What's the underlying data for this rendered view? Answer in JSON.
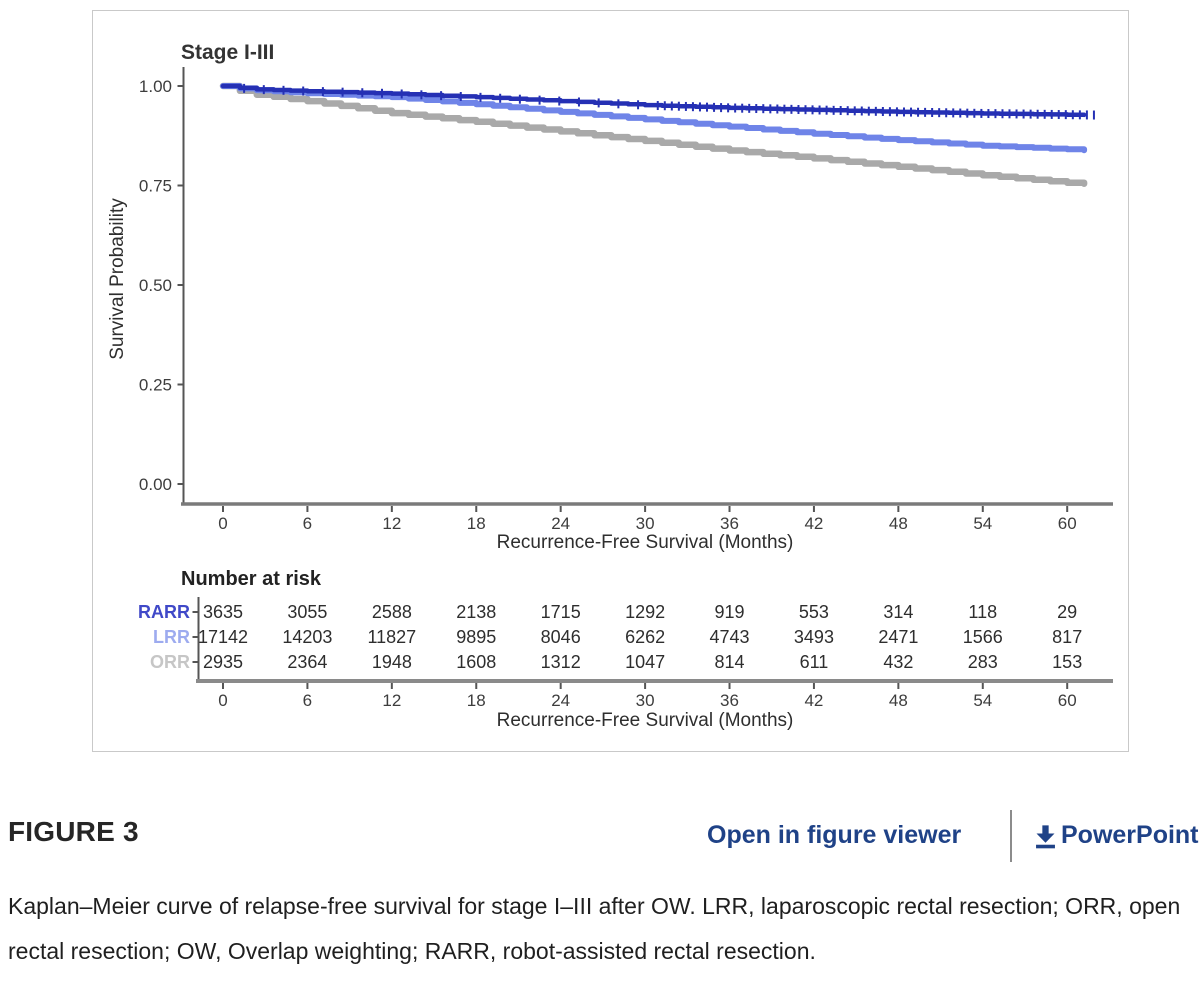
{
  "chart_data": {
    "type": "line",
    "subtype": "kaplan-meier",
    "title": "Stage I-III",
    "xlabel": "Recurrence-Free Survival (Months)",
    "ylabel": "Survival Probability",
    "xlim": [
      0,
      62
    ],
    "xticks": [
      0,
      6,
      12,
      18,
      24,
      30,
      36,
      42,
      48,
      54,
      60
    ],
    "ylim": [
      0,
      1
    ],
    "yticks": [
      0,
      0.25,
      0.5,
      0.75,
      1
    ],
    "ytick_labels": [
      "0.00",
      "0.25",
      "0.50",
      "0.75",
      "1.00"
    ],
    "grid": false,
    "series": [
      {
        "name": "RARR",
        "color": "#2530b4",
        "line_width": 4.5,
        "censor_marks": true,
        "points": [
          [
            0,
            1.0
          ],
          [
            2,
            0.992
          ],
          [
            6,
            0.987
          ],
          [
            12,
            0.981
          ],
          [
            18,
            0.972
          ],
          [
            24,
            0.962
          ],
          [
            30,
            0.952
          ],
          [
            36,
            0.945
          ],
          [
            42,
            0.94
          ],
          [
            48,
            0.935
          ],
          [
            54,
            0.931
          ],
          [
            60,
            0.928
          ],
          [
            62,
            0.927
          ]
        ]
      },
      {
        "name": "LRR",
        "color": "#6f84e8",
        "line_width": 6,
        "censor_marks": false,
        "points": [
          [
            0,
            1.0
          ],
          [
            2,
            0.99
          ],
          [
            6,
            0.982
          ],
          [
            12,
            0.972
          ],
          [
            18,
            0.954
          ],
          [
            24,
            0.935
          ],
          [
            30,
            0.916
          ],
          [
            36,
            0.898
          ],
          [
            42,
            0.88
          ],
          [
            48,
            0.864
          ],
          [
            54,
            0.85
          ],
          [
            60,
            0.841
          ],
          [
            62,
            0.837
          ]
        ]
      },
      {
        "name": "ORR",
        "color": "#a9a9a9",
        "line_width": 6.5,
        "censor_marks": false,
        "points": [
          [
            0,
            1.0
          ],
          [
            2,
            0.98
          ],
          [
            6,
            0.962
          ],
          [
            12,
            0.932
          ],
          [
            18,
            0.91
          ],
          [
            24,
            0.886
          ],
          [
            30,
            0.862
          ],
          [
            36,
            0.838
          ],
          [
            42,
            0.818
          ],
          [
            48,
            0.797
          ],
          [
            54,
            0.776
          ],
          [
            60,
            0.757
          ],
          [
            62,
            0.753
          ]
        ]
      }
    ],
    "number_at_risk": {
      "title": "Number at risk",
      "xlabel": "Recurrence-Free Survival (Months)",
      "months": [
        0,
        6,
        12,
        18,
        24,
        30,
        36,
        42,
        48,
        54,
        60
      ],
      "rows": [
        {
          "label": "RARR",
          "label_color": "#4049c8",
          "values": [
            3635,
            3055,
            2588,
            2138,
            1715,
            1292,
            919,
            553,
            314,
            118,
            29
          ]
        },
        {
          "label": "LRR",
          "label_color": "#9dabef",
          "values": [
            17142,
            14203,
            11827,
            9895,
            8046,
            6262,
            4743,
            3493,
            2471,
            1566,
            817
          ]
        },
        {
          "label": "ORR",
          "label_color": "#c6c6c6",
          "values": [
            2935,
            2364,
            1948,
            1608,
            1312,
            1047,
            814,
            611,
            432,
            283,
            153
          ]
        }
      ]
    }
  },
  "figure_footer": {
    "label": "FIGURE 3",
    "open_link_label": "Open in figure viewer",
    "powerpoint_label": "PowerPoint",
    "link_color": "#1f4287"
  },
  "caption": "Kaplan–Meier curve of relapse-free survival for stage I–III after OW. LRR, laparoscopic rectal resection; ORR, open rectal resection; OW, Overlap weighting; RARR, robot-assisted rectal resection.",
  "colors": {
    "figure_border": "#c9c9c9",
    "axis_line": "#555555",
    "x_axis_thick_line": "#7a7a7a",
    "risk_bottom_line": "#8a8a8a",
    "tick_text": "#3d3d3d",
    "axis_title_text": "#2e2e2e",
    "plot_title_text": "#333333"
  }
}
